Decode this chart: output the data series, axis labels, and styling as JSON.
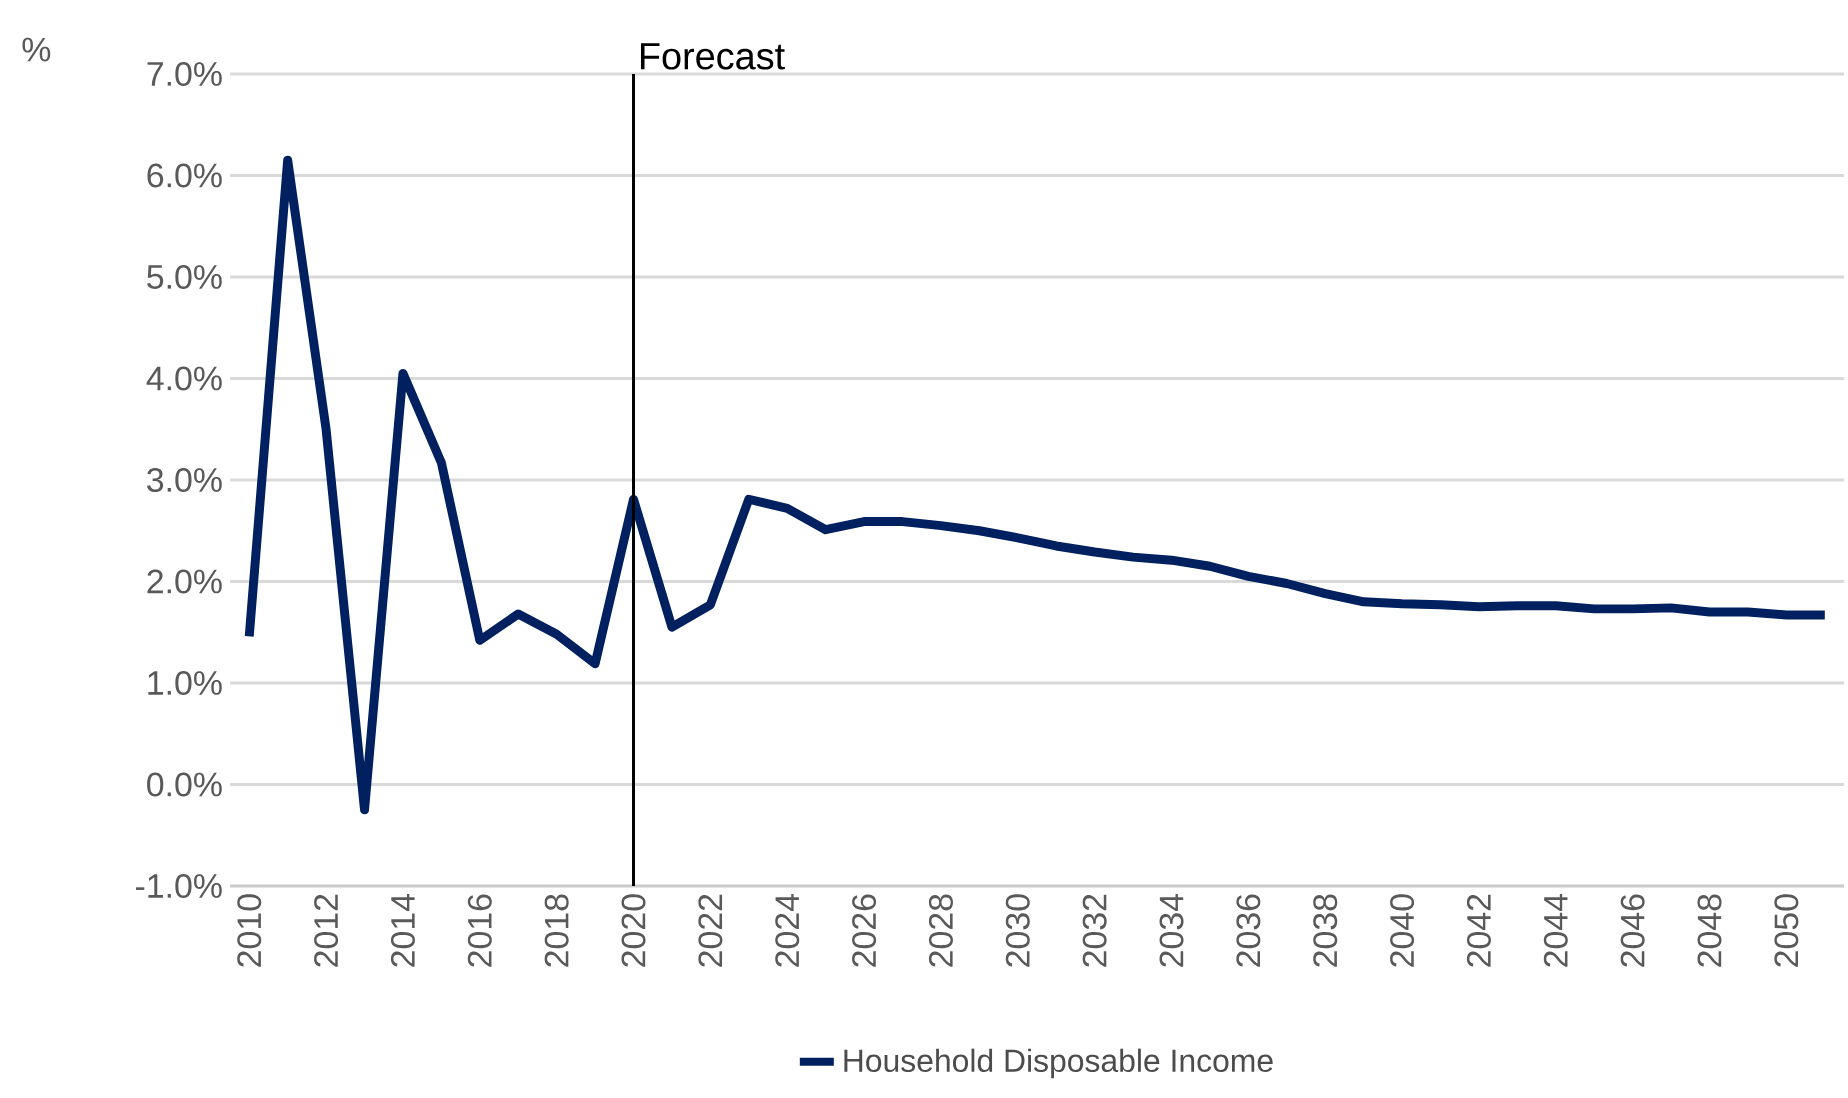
{
  "chart_data": {
    "type": "line",
    "ylabel": "%",
    "x": [
      2010,
      2011,
      2012,
      2013,
      2014,
      2015,
      2016,
      2017,
      2018,
      2019,
      2020,
      2021,
      2022,
      2023,
      2024,
      2025,
      2026,
      2027,
      2028,
      2029,
      2030,
      2031,
      2032,
      2033,
      2034,
      2035,
      2036,
      2037,
      2038,
      2039,
      2040,
      2041,
      2042,
      2043,
      2044,
      2045,
      2046,
      2047,
      2048,
      2049,
      2050,
      2051
    ],
    "series": [
      {
        "name": "Household Disposable Income",
        "color": "#002060",
        "values": [
          1.46,
          6.15,
          3.5,
          -0.25,
          4.05,
          3.17,
          1.42,
          1.68,
          1.48,
          1.19,
          2.81,
          1.55,
          1.77,
          2.81,
          2.72,
          2.51,
          2.59,
          2.59,
          2.55,
          2.5,
          2.43,
          2.35,
          2.29,
          2.24,
          2.21,
          2.15,
          2.05,
          1.98,
          1.88,
          1.8,
          1.78,
          1.77,
          1.75,
          1.76,
          1.76,
          1.73,
          1.73,
          1.74,
          1.7,
          1.7,
          1.67,
          1.67
        ]
      }
    ],
    "xlim": [
      2009.5,
      2051.5
    ],
    "xticks": [
      2010,
      2012,
      2014,
      2016,
      2018,
      2020,
      2022,
      2024,
      2026,
      2028,
      2030,
      2032,
      2034,
      2036,
      2038,
      2040,
      2042,
      2044,
      2046,
      2048,
      2050
    ],
    "ylim": [
      -1,
      7
    ],
    "yticks": [
      {
        "value": -1,
        "label": "-1.0%"
      },
      {
        "value": 0,
        "label": "0.0%"
      },
      {
        "value": 1,
        "label": "1.0%"
      },
      {
        "value": 2,
        "label": "2.0%"
      },
      {
        "value": 3,
        "label": "3.0%"
      },
      {
        "value": 4,
        "label": "4.0%"
      },
      {
        "value": 5,
        "label": "5.0%"
      },
      {
        "value": 6,
        "label": "6.0%"
      },
      {
        "value": 7,
        "label": "7.0%"
      }
    ],
    "ref_lines": [
      {
        "axis": "x",
        "value": 2020,
        "label": "Forecast",
        "color": "#000000"
      }
    ],
    "grid": "y",
    "legend": "bottom",
    "marker": "none",
    "line_style": "solid"
  }
}
